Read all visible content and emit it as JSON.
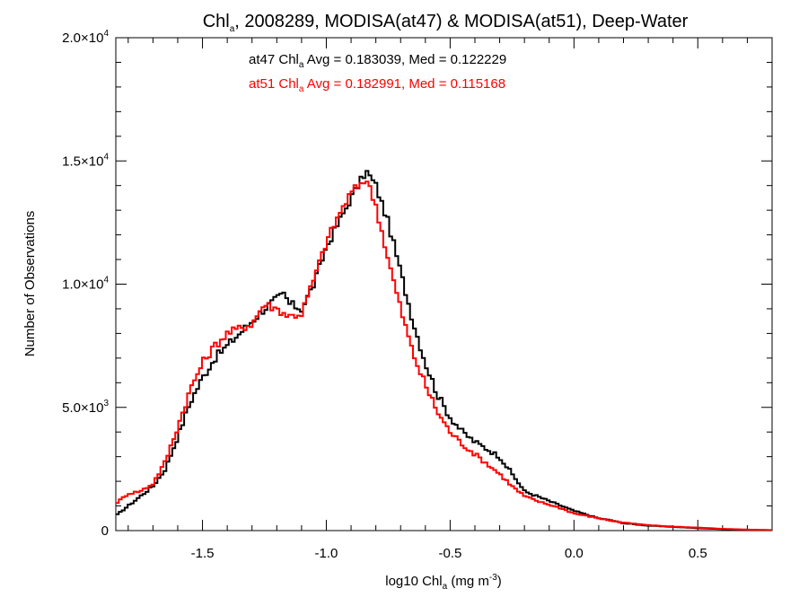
{
  "chart_data": {
    "type": "line",
    "step": true,
    "title": {
      "prefix": "Chl",
      "sub": "a",
      "suffix": ", 2008289, MODISA(at47) & MODISA(at51), Deep-Water"
    },
    "stats": [
      {
        "color": "#000000",
        "prefix": "at47 Chl",
        "sub": "a",
        "suffix": " Avg = 0.183039, Med = 0.122229"
      },
      {
        "color": "#ff0000",
        "prefix": "at51 Chl",
        "sub": "a",
        "suffix": " Avg = 0.182991, Med = 0.115168"
      }
    ],
    "xlabel": {
      "prefix": "log10 Chl",
      "sub": "a",
      "mid": " (mg m",
      "sup": "-3",
      "suffix": ")"
    },
    "ylabel": "Number of Observations",
    "xlim": [
      -1.85,
      0.8
    ],
    "ylim": [
      0,
      20000
    ],
    "x_ticks": [
      {
        "value": -1.5,
        "label": "-1.5"
      },
      {
        "value": -1.0,
        "label": "-1.0"
      },
      {
        "value": -0.5,
        "label": "-0.5"
      },
      {
        "value": 0.0,
        "label": "0.0"
      },
      {
        "value": 0.5,
        "label": "0.5"
      }
    ],
    "y_ticks": [
      {
        "value": 0,
        "mantissa": "0",
        "exp": ""
      },
      {
        "value": 5000,
        "mantissa": "5.0×10",
        "exp": "3"
      },
      {
        "value": 10000,
        "mantissa": "1.0×10",
        "exp": "4"
      },
      {
        "value": 15000,
        "mantissa": "1.5×10",
        "exp": "4"
      },
      {
        "value": 20000,
        "mantissa": "2.0×10",
        "exp": "4"
      }
    ],
    "grid": false,
    "series": [
      {
        "color": "#000000",
        "x": [
          -1.85,
          -1.8,
          -1.75,
          -1.7,
          -1.65,
          -1.6,
          -1.55,
          -1.5,
          -1.45,
          -1.4,
          -1.35,
          -1.3,
          -1.25,
          -1.2,
          -1.17,
          -1.15,
          -1.1,
          -1.05,
          -1.0,
          -0.95,
          -0.9,
          -0.86,
          -0.84,
          -0.8,
          -0.75,
          -0.7,
          -0.65,
          -0.6,
          -0.55,
          -0.5,
          -0.45,
          -0.4,
          -0.35,
          -0.3,
          -0.25,
          -0.2,
          -0.15,
          -0.1,
          -0.05,
          0.0,
          0.05,
          0.1,
          0.15,
          0.2,
          0.3,
          0.4,
          0.5,
          0.6,
          0.7,
          0.8
        ],
        "y": [
          600,
          1000,
          1400,
          1800,
          2500,
          3800,
          5200,
          6200,
          7000,
          7500,
          8000,
          8500,
          9000,
          9400,
          9600,
          9200,
          9000,
          10000,
          11500,
          12500,
          13500,
          14200,
          14600,
          14000,
          12500,
          10500,
          8500,
          6800,
          5500,
          4600,
          4000,
          3600,
          3300,
          3000,
          2300,
          1600,
          1400,
          1200,
          1000,
          800,
          650,
          500,
          420,
          300,
          200,
          150,
          100,
          60,
          30,
          15
        ]
      },
      {
        "color": "#ff0000",
        "x": [
          -1.85,
          -1.8,
          -1.75,
          -1.7,
          -1.65,
          -1.6,
          -1.55,
          -1.5,
          -1.45,
          -1.4,
          -1.35,
          -1.3,
          -1.25,
          -1.2,
          -1.15,
          -1.1,
          -1.05,
          -1.0,
          -0.95,
          -0.9,
          -0.85,
          -0.84,
          -0.8,
          -0.75,
          -0.7,
          -0.65,
          -0.6,
          -0.55,
          -0.5,
          -0.45,
          -0.4,
          -0.35,
          -0.3,
          -0.25,
          -0.2,
          -0.15,
          -0.1,
          -0.05,
          0.0,
          0.05,
          0.1,
          0.15,
          0.2,
          0.3,
          0.4,
          0.5,
          0.6,
          0.7,
          0.8
        ],
        "y": [
          1100,
          1500,
          1600,
          1900,
          2800,
          4200,
          5700,
          6800,
          7500,
          8000,
          8200,
          8400,
          9200,
          9000,
          8700,
          8800,
          10200,
          11700,
          12800,
          13700,
          14200,
          14300,
          13200,
          11000,
          9000,
          7200,
          5900,
          4800,
          4000,
          3500,
          3100,
          2700,
          2300,
          1800,
          1400,
          1200,
          1050,
          900,
          700,
          600,
          500,
          400,
          320,
          220,
          160,
          120,
          70,
          40,
          20
        ]
      }
    ]
  }
}
